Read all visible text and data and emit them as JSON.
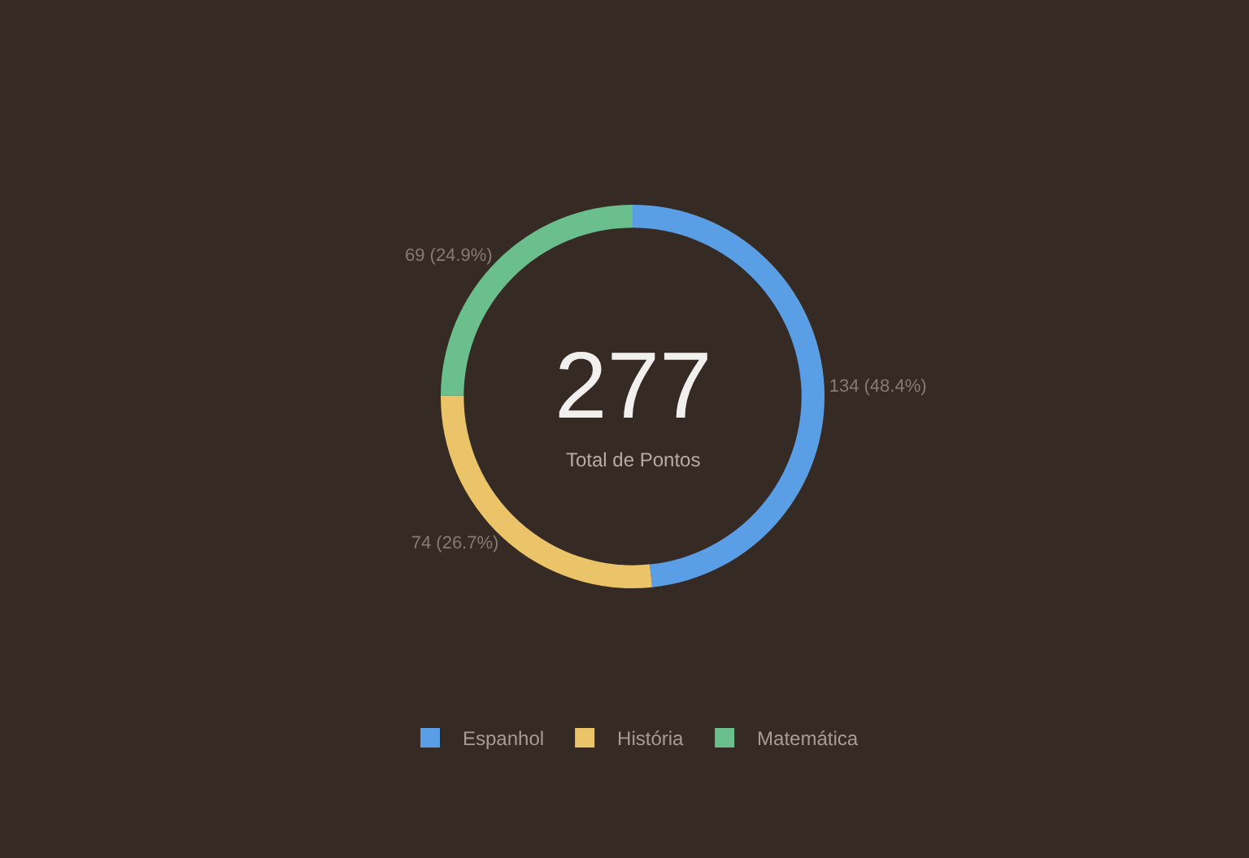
{
  "chart_data": {
    "type": "donut",
    "categories": [
      "Espanhol",
      "História",
      "Matemática"
    ],
    "values": [
      134,
      74,
      69
    ],
    "colors": [
      "#5a9ee6",
      "#ebc46a",
      "#6bbf8d"
    ],
    "value_labels": [
      "134 (48.4%)",
      "74 (26.7%)",
      "69 (24.9%)"
    ],
    "annotations": [
      "277",
      "Total de Pontos"
    ],
    "legend": "bottom"
  }
}
